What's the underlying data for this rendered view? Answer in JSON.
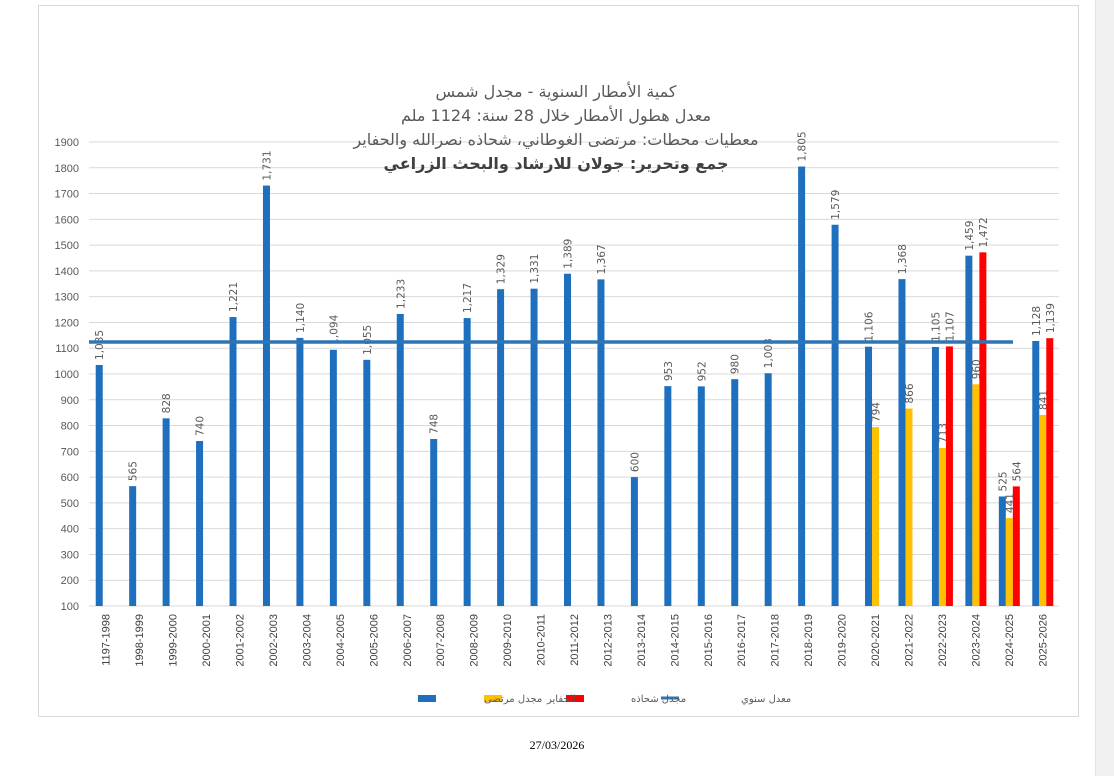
{
  "chart_data": {
    "type": "bar",
    "title_lines": [
      "كمية الأمطار السنوية - مجدل شمس",
      "معدل هطول الأمطار خلال 28 سنة: 1124 ملم",
      "معطيات محطات: مرتضى الغوطاني، شحاذه نصرالله والحفاير",
      "جمع وتحرير: جولان للارشاد والبحث الزراعي"
    ],
    "categories": [
      "1197-1998",
      "1998-1999",
      "1999-2000",
      "2000-2001",
      "2001-2002",
      "2002-2003",
      "2003-2004",
      "2004-2005",
      "2005-2006",
      "2006-2007",
      "2007-2008",
      "2008-2009",
      "2009-2010",
      "2010-2011",
      "2011-2012",
      "2012-2013",
      "2013-2014",
      "2014-2015",
      "2015-2016",
      "2016-2017",
      "2017-2018",
      "2018-2019",
      "2019-2020",
      "2020-2021",
      "2021-2022",
      "2022-2023",
      "2023-2024",
      "2024-2025",
      "2025-2026"
    ],
    "series": [
      {
        "name": "مجدل مرتضى",
        "color": "#1f6fbf",
        "values": [
          1035,
          565,
          828,
          740,
          1221,
          1731,
          1140,
          1094,
          1055,
          1233,
          748,
          1217,
          1329,
          1331,
          1389,
          1367,
          600,
          953,
          952,
          980,
          1003,
          1805,
          1579,
          1106,
          1368,
          1105,
          1459,
          525,
          1128
        ]
      },
      {
        "name": "الحفاير",
        "color": "#ffc000",
        "values": [
          null,
          null,
          null,
          null,
          null,
          null,
          null,
          null,
          null,
          null,
          null,
          null,
          null,
          null,
          null,
          null,
          null,
          null,
          null,
          null,
          null,
          null,
          null,
          794,
          866,
          713,
          960,
          441,
          841
        ]
      },
      {
        "name": "مجدل شحاذه",
        "color": "#ff0000",
        "values": [
          null,
          null,
          null,
          null,
          null,
          null,
          null,
          null,
          null,
          null,
          null,
          null,
          null,
          null,
          null,
          null,
          null,
          null,
          null,
          null,
          null,
          null,
          null,
          null,
          null,
          1107,
          1472,
          564,
          1139
        ]
      }
    ],
    "average": {
      "name": "معدل سنوي",
      "color": "#2e75b6",
      "value": 1124
    },
    "yticks": [
      100,
      200,
      300,
      400,
      500,
      600,
      700,
      800,
      900,
      1000,
      1100,
      1200,
      1300,
      1400,
      1500,
      1600,
      1700,
      1800,
      1900
    ],
    "ylim": [
      100,
      1900
    ],
    "grid": true,
    "legend_position": "bottom"
  },
  "footer_date": "27/03/2026"
}
